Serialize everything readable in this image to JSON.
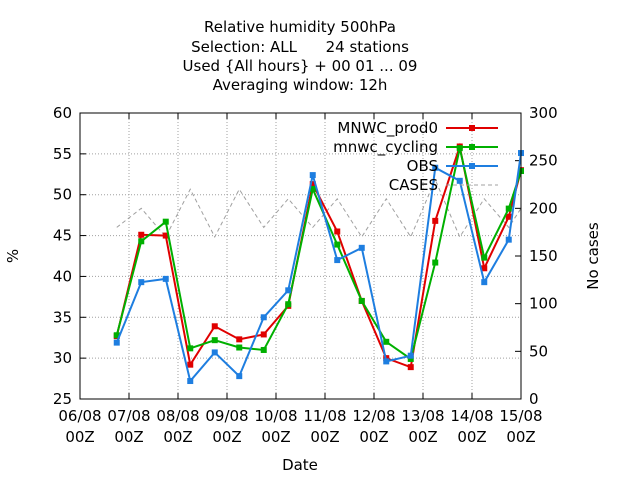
{
  "chart_data": {
    "type": "line",
    "title_lines": [
      "Relative humidity 500hPa",
      "Selection: ALL      24 stations",
      "Used {All hours} + 00 01 ... 09",
      "Averaging window: 12h"
    ],
    "xlabel": "Date",
    "ylabel": "%",
    "y2label": "No cases",
    "x_ticks": [
      {
        "day": 0,
        "line1": "06/08",
        "line2": "00Z"
      },
      {
        "day": 1,
        "line1": "07/08",
        "line2": "00Z"
      },
      {
        "day": 2,
        "line1": "08/08",
        "line2": "00Z"
      },
      {
        "day": 3,
        "line1": "09/08",
        "line2": "00Z"
      },
      {
        "day": 4,
        "line1": "10/08",
        "line2": "00Z"
      },
      {
        "day": 5,
        "line1": "11/08",
        "line2": "00Z"
      },
      {
        "day": 6,
        "line1": "12/08",
        "line2": "00Z"
      },
      {
        "day": 7,
        "line1": "13/08",
        "line2": "00Z"
      },
      {
        "day": 8,
        "line1": "14/08",
        "line2": "00Z"
      },
      {
        "day": 9,
        "line1": "15/08",
        "line2": "00Z"
      }
    ],
    "xlim": [
      0,
      9
    ],
    "ylim": [
      25,
      60
    ],
    "y_ticks": [
      "25",
      "30",
      "35",
      "40",
      "45",
      "50",
      "55",
      "60"
    ],
    "y2lim": [
      0,
      300
    ],
    "y2_ticks": [
      "0",
      "50",
      "100",
      "150",
      "200",
      "250",
      "300"
    ],
    "legend_position": "top-right",
    "x_days": [
      0.75,
      1.25,
      1.75,
      2.25,
      2.75,
      3.25,
      3.75,
      4.25,
      4.75,
      5.25,
      5.75,
      6.25,
      6.75,
      7.25,
      7.75,
      8.25,
      8.75,
      9.0
    ],
    "series": [
      {
        "name": "MNWC_prod0",
        "color": "#e00000",
        "axis": "y1",
        "values": [
          32.7,
          45.1,
          45.0,
          29.2,
          33.9,
          32.3,
          32.9,
          36.4,
          51.3,
          45.5,
          37.0,
          30.0,
          28.9,
          46.8,
          55.9,
          41.0,
          47.3,
          53.0
        ]
      },
      {
        "name": "mnwc_cycling",
        "color": "#00b000",
        "axis": "y1",
        "values": [
          32.8,
          44.3,
          46.7,
          31.2,
          32.2,
          31.3,
          31.0,
          36.6,
          50.7,
          43.9,
          37.0,
          32.0,
          29.9,
          41.7,
          55.7,
          42.3,
          48.3,
          52.9
        ]
      },
      {
        "name": "OBS",
        "color": "#1e7ee0",
        "axis": "y1",
        "values": [
          31.9,
          39.3,
          39.7,
          27.2,
          30.7,
          27.8,
          35.0,
          38.3,
          52.4,
          42.0,
          43.5,
          29.6,
          30.3,
          53.3,
          51.7,
          39.3,
          44.5,
          55.1
        ]
      }
    ],
    "cases_series": {
      "name": "CASES",
      "color": "#a0a0a0",
      "axis": "y2",
      "x_days": [
        0.75,
        1.25,
        1.75,
        2.25,
        2.75,
        3.25,
        3.75,
        4.25,
        4.75,
        5.25,
        5.75,
        6.25,
        6.75,
        7.25,
        7.75,
        8.25,
        8.75,
        9.0
      ],
      "values": [
        180,
        200,
        170,
        220,
        170,
        220,
        180,
        210,
        180,
        210,
        170,
        210,
        170,
        230,
        170,
        210,
        180,
        200
      ]
    }
  }
}
